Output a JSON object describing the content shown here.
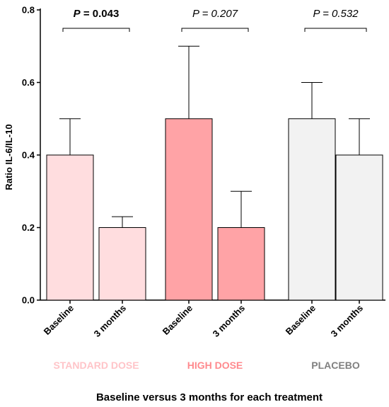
{
  "chart_data": {
    "type": "bar",
    "title": "",
    "ylabel": "Ratio IL-6/IL-10",
    "xlabel": "Baseline versus 3 months for each treatment",
    "ylim": [
      0,
      0.8
    ],
    "yticks": [
      "0.0",
      "0.2",
      "0.4",
      "0.6",
      "0.8"
    ],
    "grid": false,
    "groups": [
      {
        "name": "STANDARD DOSE",
        "color": "#FFDDDF",
        "label_color": "#FFC4C8",
        "p_label": "P = 0.043",
        "p_bold": true,
        "bars": [
          {
            "category": "Baseline",
            "value": 0.4,
            "error": 0.1
          },
          {
            "category": "3 months",
            "value": 0.2,
            "error": 0.03
          }
        ]
      },
      {
        "name": "HIGH DOSE",
        "color": "#FFA3A6",
        "label_color": "#FF8A8E",
        "p_label": "P = 0.207",
        "p_bold": false,
        "bars": [
          {
            "category": "Baseline",
            "value": 0.5,
            "error": 0.2
          },
          {
            "category": "3 months",
            "value": 0.2,
            "error": 0.1
          }
        ]
      },
      {
        "name": "PLACEBO",
        "color": "#F2F2F2",
        "label_color": "#808080",
        "p_label": "P = 0.532",
        "p_bold": false,
        "bars": [
          {
            "category": "Baseline",
            "value": 0.5,
            "error": 0.1
          },
          {
            "category": "3 months",
            "value": 0.4,
            "error": 0.1
          }
        ]
      }
    ]
  }
}
